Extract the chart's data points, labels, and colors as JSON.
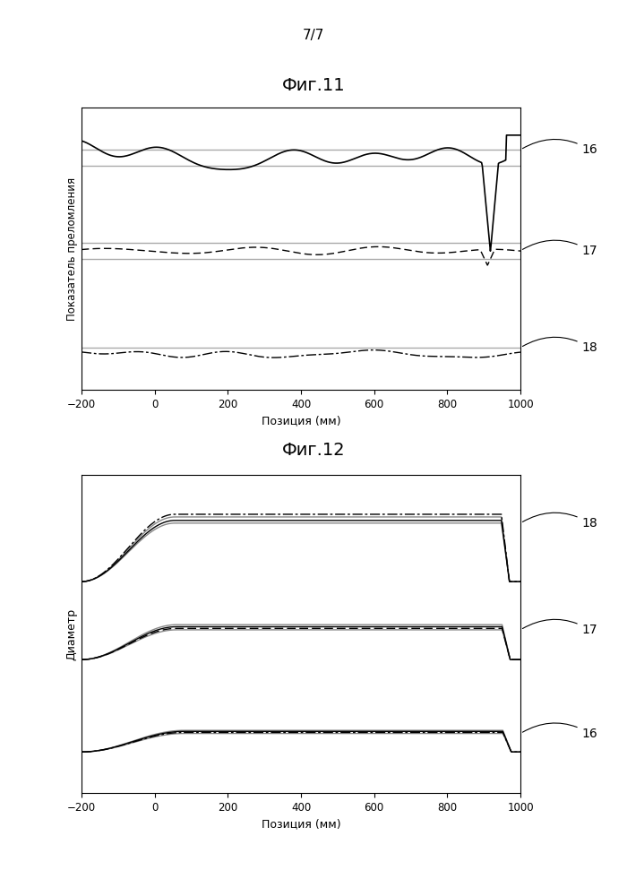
{
  "fig_title_top": "7/7",
  "fig11_title": "Фиг.11",
  "fig12_title": "Фиг.12",
  "xlabel": "Позиция (мм)",
  "fig11_ylabel": "Показатель преломления",
  "fig12_ylabel": "Диаметр",
  "xmin": -200,
  "xmax": 1000,
  "xticks": [
    -200,
    0,
    200,
    400,
    600,
    800,
    1000
  ],
  "label_16": "16",
  "label_17": "17",
  "label_18": "18",
  "bg_color": "#ffffff"
}
